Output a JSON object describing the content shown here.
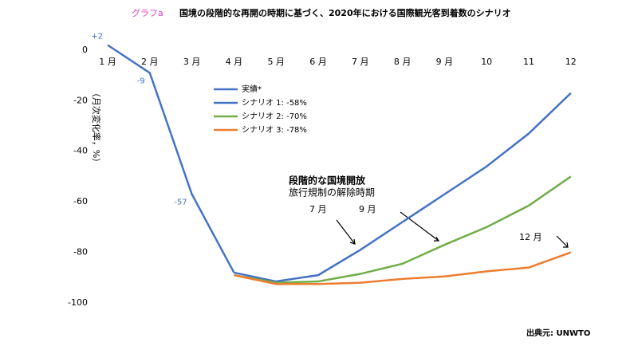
{
  "header": "グラフa",
  "chart_data": {
    "type": "line",
    "title": "国境の段階的な再開の時期に基づく、2020年における国際観光客到着数のシナリオ",
    "ylabel": "（月次変化率，%）",
    "categories": [
      "1 月",
      "2 月",
      "3 月",
      "4 月",
      "5 月",
      "6 月",
      "7 月",
      "8 月",
      "9 月",
      "10",
      "11",
      "12"
    ],
    "series": [
      {
        "name": "実績*",
        "color": "#4472c4",
        "values": [
          2,
          -9,
          -57,
          -88,
          null,
          null,
          null,
          null,
          null,
          null,
          null,
          null
        ],
        "value_labels": [
          "+2",
          "-9",
          "-57",
          null,
          null,
          null,
          null,
          null,
          null,
          null,
          null,
          null
        ]
      },
      {
        "name": "シナリオ 1: -58%",
        "color": "#4472c4",
        "values": [
          null,
          null,
          null,
          -88,
          -91.5,
          -89,
          -79,
          -68,
          -57,
          -46,
          -33,
          -17
        ]
      },
      {
        "name": "シナリオ 2: -70%",
        "color": "#70ad47",
        "values": [
          null,
          null,
          null,
          -89,
          -92,
          -91.5,
          -88.5,
          -84.5,
          -77,
          -70,
          -61.5,
          -50
        ]
      },
      {
        "name": "シナリオ 3: -78%",
        "color": "#ed7d31",
        "values": [
          null,
          null,
          null,
          -89,
          -92.5,
          -92.5,
          -92,
          -90.5,
          -89.5,
          -87.5,
          -86,
          -80
        ]
      }
    ],
    "ylim": [
      -100,
      5
    ],
    "yticks": [
      0,
      -20,
      -40,
      -60,
      -80,
      -100
    ],
    "annotations": [
      "段階的な国境開放",
      "旅行規制の解除時期",
      "7 月",
      "9 月",
      "12 月"
    ],
    "source": "出典元: UNWTO"
  }
}
